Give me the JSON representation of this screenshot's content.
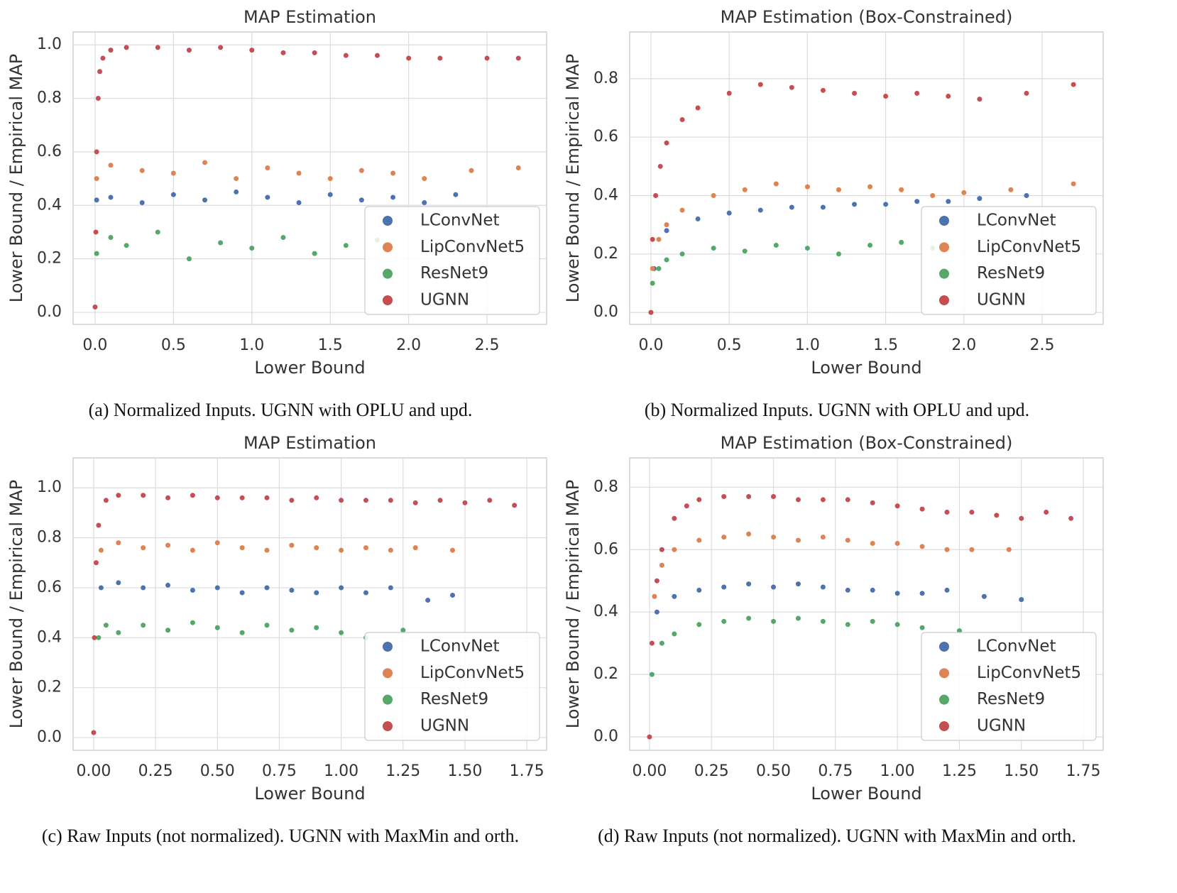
{
  "chart_data": [
    {
      "type": "scatter",
      "title": "MAP Estimation",
      "x_label": "Lower Bound",
      "y_label": "Lower Bound / Empirical MAP",
      "caption": "(a) Normalized Inputs. UGNN with OPLU and upd.",
      "xlim": [
        -0.14,
        2.88
      ],
      "ylim": [
        -0.045,
        1.048
      ],
      "xticks": [
        {
          "value": 0,
          "label": "0.0"
        },
        0.5,
        {
          "value": 1,
          "label": "1.0"
        },
        1.5,
        {
          "value": 2,
          "label": "2.0"
        },
        2.5
      ],
      "yticks": [
        {
          "value": 0,
          "label": "0.0"
        },
        0.2,
        0.4,
        0.6,
        0.8,
        {
          "value": 1,
          "label": "1.0"
        }
      ],
      "grid": true,
      "legend": "lower right",
      "series": [
        {
          "name": "LConvNet",
          "color": "#4c72b0",
          "x": [
            0.01,
            0.1,
            0.3,
            0.5,
            0.7,
            0.9,
            1.1,
            1.3,
            1.5,
            1.7,
            1.9,
            2.1,
            2.3
          ],
          "values": [
            0.42,
            0.43,
            0.41,
            0.44,
            0.42,
            0.45,
            0.43,
            0.41,
            0.44,
            0.42,
            0.43,
            0.41,
            0.44
          ]
        },
        {
          "name": "LipConvNet5",
          "color": "#dd8452",
          "x": [
            0.01,
            0.1,
            0.3,
            0.5,
            0.7,
            0.9,
            1.1,
            1.3,
            1.5,
            1.7,
            1.9,
            2.1,
            2.4,
            2.7
          ],
          "values": [
            0.5,
            0.55,
            0.53,
            0.52,
            0.56,
            0.5,
            0.54,
            0.52,
            0.5,
            0.53,
            0.52,
            0.5,
            0.53,
            0.54
          ]
        },
        {
          "name": "ResNet9",
          "color": "#55a868",
          "x": [
            0.01,
            0.1,
            0.2,
            0.4,
            0.6,
            0.8,
            1.0,
            1.2,
            1.4,
            1.6,
            1.8
          ],
          "values": [
            0.22,
            0.28,
            0.25,
            0.3,
            0.2,
            0.26,
            0.24,
            0.28,
            0.22,
            0.25,
            0.27
          ]
        },
        {
          "name": "UGNN",
          "color": "#c44e52",
          "x": [
            0.0,
            0.005,
            0.01,
            0.02,
            0.03,
            0.05,
            0.1,
            0.2,
            0.4,
            0.6,
            0.8,
            1.0,
            1.2,
            1.4,
            1.6,
            1.8,
            2.0,
            2.2,
            2.5,
            2.7
          ],
          "values": [
            0.02,
            0.3,
            0.6,
            0.8,
            0.9,
            0.95,
            0.98,
            0.99,
            0.99,
            0.98,
            0.99,
            0.98,
            0.97,
            0.97,
            0.96,
            0.96,
            0.95,
            0.95,
            0.95,
            0.95
          ]
        }
      ]
    },
    {
      "type": "scatter",
      "title": "MAP Estimation (Box-Constrained)",
      "x_label": "Lower Bound",
      "y_label": "Lower Bound / Empirical MAP",
      "caption": "(b) Normalized Inputs. UGNN with OPLU and upd.",
      "xlim": [
        -0.136,
        2.89
      ],
      "ylim": [
        -0.041,
        0.96
      ],
      "xticks": [
        {
          "value": 0,
          "label": "0.0"
        },
        0.5,
        {
          "value": 1,
          "label": "1.0"
        },
        1.5,
        {
          "value": 2,
          "label": "2.0"
        },
        2.5
      ],
      "yticks": [
        {
          "value": 0,
          "label": "0.0"
        },
        0.2,
        0.4,
        0.6,
        0.8
      ],
      "grid": true,
      "legend": "lower right",
      "series": [
        {
          "name": "LConvNet",
          "color": "#4c72b0",
          "x": [
            0.02,
            0.1,
            0.3,
            0.5,
            0.7,
            0.9,
            1.1,
            1.3,
            1.5,
            1.7,
            1.9,
            2.1,
            2.4
          ],
          "values": [
            0.15,
            0.28,
            0.32,
            0.34,
            0.35,
            0.36,
            0.36,
            0.37,
            0.37,
            0.38,
            0.38,
            0.39,
            0.4
          ]
        },
        {
          "name": "LipConvNet5",
          "color": "#dd8452",
          "x": [
            0.01,
            0.05,
            0.1,
            0.2,
            0.4,
            0.6,
            0.8,
            1.0,
            1.2,
            1.4,
            1.6,
            1.8,
            2.0,
            2.3,
            2.7
          ],
          "values": [
            0.15,
            0.25,
            0.3,
            0.35,
            0.4,
            0.42,
            0.44,
            0.43,
            0.42,
            0.43,
            0.42,
            0.4,
            0.41,
            0.42,
            0.44
          ]
        },
        {
          "name": "ResNet9",
          "color": "#55a868",
          "x": [
            0.01,
            0.05,
            0.1,
            0.2,
            0.4,
            0.6,
            0.8,
            1.0,
            1.2,
            1.4,
            1.6,
            1.8
          ],
          "values": [
            0.1,
            0.15,
            0.18,
            0.2,
            0.22,
            0.21,
            0.23,
            0.22,
            0.2,
            0.23,
            0.24,
            0.22
          ]
        },
        {
          "name": "UGNN",
          "color": "#c44e52",
          "x": [
            0.0,
            0.01,
            0.03,
            0.06,
            0.1,
            0.2,
            0.3,
            0.5,
            0.7,
            0.9,
            1.1,
            1.3,
            1.5,
            1.7,
            1.9,
            2.1,
            2.4,
            2.7
          ],
          "values": [
            0.0,
            0.25,
            0.4,
            0.5,
            0.58,
            0.66,
            0.7,
            0.75,
            0.78,
            0.77,
            0.76,
            0.75,
            0.74,
            0.75,
            0.74,
            0.73,
            0.75,
            0.78
          ]
        }
      ]
    },
    {
      "type": "scatter",
      "title": "MAP Estimation",
      "x_label": "Lower Bound",
      "y_label": "Lower Bound / Empirical MAP",
      "caption": "(c) Raw Inputs (not normalized). UGNN with MaxMin and orth.",
      "xlim": [
        -0.083,
        1.83
      ],
      "ylim": [
        -0.051,
        1.12
      ],
      "xticks": [
        {
          "value": 0,
          "label": "0.00"
        },
        0.25,
        {
          "value": 0.5,
          "label": "0.50"
        },
        0.75,
        {
          "value": 1,
          "label": "1.00"
        },
        1.25,
        {
          "value": 1.5,
          "label": "1.50"
        },
        1.75
      ],
      "yticks": [
        {
          "value": 0,
          "label": "0.0"
        },
        0.2,
        0.4,
        0.6,
        0.8,
        {
          "value": 1,
          "label": "1.0"
        }
      ],
      "grid": true,
      "legend": "lower right",
      "series": [
        {
          "name": "LConvNet",
          "color": "#4c72b0",
          "x": [
            0.03,
            0.1,
            0.2,
            0.3,
            0.4,
            0.5,
            0.6,
            0.7,
            0.8,
            0.9,
            1.0,
            1.1,
            1.2,
            1.35,
            1.45
          ],
          "values": [
            0.6,
            0.62,
            0.6,
            0.61,
            0.59,
            0.6,
            0.58,
            0.6,
            0.59,
            0.58,
            0.6,
            0.58,
            0.6,
            0.55,
            0.57
          ]
        },
        {
          "name": "LipConvNet5",
          "color": "#dd8452",
          "x": [
            0.03,
            0.1,
            0.2,
            0.3,
            0.4,
            0.5,
            0.6,
            0.7,
            0.8,
            0.9,
            1.0,
            1.1,
            1.2,
            1.3,
            1.45
          ],
          "values": [
            0.75,
            0.78,
            0.76,
            0.77,
            0.75,
            0.78,
            0.76,
            0.75,
            0.77,
            0.76,
            0.75,
            0.76,
            0.75,
            0.76,
            0.75
          ]
        },
        {
          "name": "ResNet9",
          "color": "#55a868",
          "x": [
            0.02,
            0.05,
            0.1,
            0.2,
            0.3,
            0.4,
            0.5,
            0.6,
            0.7,
            0.8,
            0.9,
            1.0,
            1.1,
            1.25
          ],
          "values": [
            0.4,
            0.45,
            0.42,
            0.45,
            0.43,
            0.46,
            0.44,
            0.42,
            0.45,
            0.43,
            0.44,
            0.42,
            0.4,
            0.43
          ]
        },
        {
          "name": "UGNN",
          "color": "#c44e52",
          "x": [
            0.0,
            0.003,
            0.01,
            0.02,
            0.05,
            0.1,
            0.2,
            0.3,
            0.4,
            0.5,
            0.6,
            0.7,
            0.8,
            0.9,
            1.0,
            1.1,
            1.2,
            1.3,
            1.4,
            1.5,
            1.6,
            1.7
          ],
          "values": [
            0.02,
            0.4,
            0.7,
            0.85,
            0.95,
            0.97,
            0.97,
            0.96,
            0.97,
            0.96,
            0.96,
            0.96,
            0.95,
            0.96,
            0.95,
            0.95,
            0.95,
            0.94,
            0.95,
            0.94,
            0.95,
            0.93
          ]
        }
      ]
    },
    {
      "type": "scatter",
      "title": "MAP Estimation (Box-Constrained)",
      "x_label": "Lower Bound",
      "y_label": "Lower Bound / Empirical MAP",
      "caption": "(d) Raw Inputs (not normalized). UGNN with MaxMin and orth.",
      "xlim": [
        -0.08,
        1.83
      ],
      "ylim": [
        -0.043,
        0.894
      ],
      "xticks": [
        {
          "value": 0,
          "label": "0.00"
        },
        0.25,
        {
          "value": 0.5,
          "label": "0.50"
        },
        0.75,
        {
          "value": 1,
          "label": "1.00"
        },
        1.25,
        {
          "value": 1.5,
          "label": "1.50"
        },
        1.75
      ],
      "yticks": [
        {
          "value": 0,
          "label": "0.0"
        },
        0.2,
        0.4,
        0.6,
        0.8
      ],
      "grid": true,
      "legend": "lower right",
      "series": [
        {
          "name": "LConvNet",
          "color": "#4c72b0",
          "x": [
            0.03,
            0.1,
            0.2,
            0.3,
            0.4,
            0.5,
            0.6,
            0.7,
            0.8,
            0.9,
            1.0,
            1.1,
            1.2,
            1.35,
            1.5
          ],
          "values": [
            0.4,
            0.45,
            0.47,
            0.48,
            0.49,
            0.48,
            0.49,
            0.48,
            0.47,
            0.47,
            0.46,
            0.46,
            0.47,
            0.45,
            0.44
          ]
        },
        {
          "name": "LipConvNet5",
          "color": "#dd8452",
          "x": [
            0.02,
            0.05,
            0.1,
            0.2,
            0.3,
            0.4,
            0.5,
            0.6,
            0.7,
            0.8,
            0.9,
            1.0,
            1.1,
            1.2,
            1.3,
            1.45
          ],
          "values": [
            0.45,
            0.55,
            0.6,
            0.63,
            0.64,
            0.65,
            0.64,
            0.63,
            0.64,
            0.63,
            0.62,
            0.62,
            0.61,
            0.6,
            0.6,
            0.6
          ]
        },
        {
          "name": "ResNet9",
          "color": "#55a868",
          "x": [
            0.01,
            0.05,
            0.1,
            0.2,
            0.3,
            0.4,
            0.5,
            0.6,
            0.7,
            0.8,
            0.9,
            1.0,
            1.1,
            1.25
          ],
          "values": [
            0.2,
            0.3,
            0.33,
            0.36,
            0.37,
            0.38,
            0.37,
            0.38,
            0.37,
            0.36,
            0.37,
            0.36,
            0.35,
            0.34
          ]
        },
        {
          "name": "UGNN",
          "color": "#c44e52",
          "x": [
            0.0,
            0.01,
            0.03,
            0.05,
            0.1,
            0.15,
            0.2,
            0.3,
            0.4,
            0.5,
            0.6,
            0.7,
            0.8,
            0.9,
            1.0,
            1.1,
            1.2,
            1.3,
            1.4,
            1.5,
            1.6,
            1.7
          ],
          "values": [
            0.0,
            0.3,
            0.5,
            0.6,
            0.7,
            0.74,
            0.76,
            0.77,
            0.77,
            0.77,
            0.76,
            0.76,
            0.76,
            0.75,
            0.74,
            0.73,
            0.72,
            0.72,
            0.71,
            0.7,
            0.72,
            0.7
          ]
        }
      ]
    }
  ]
}
